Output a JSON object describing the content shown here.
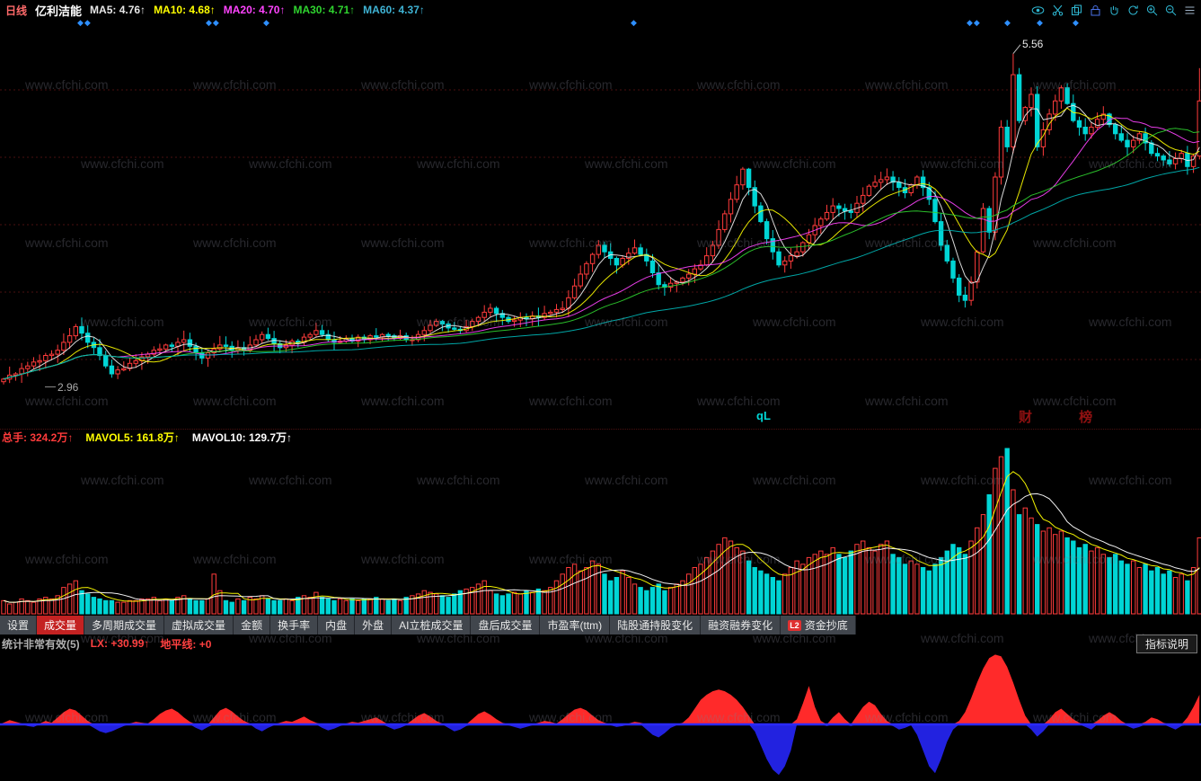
{
  "header": {
    "period": "日线",
    "stock_name": "亿利洁能",
    "ma_legend": [
      {
        "label": "MA5: 4.76↑",
        "color": "#e8e8e8"
      },
      {
        "label": "MA10: 4.68↑",
        "color": "#ffff00"
      },
      {
        "label": "MA20: 4.70↑",
        "color": "#ff44ff"
      },
      {
        "label": "MA30: 4.71↑",
        "color": "#2fd32f"
      },
      {
        "label": "MA60: 4.37↑",
        "color": "#3fb3d4"
      }
    ],
    "icons": [
      "eye",
      "scissors",
      "copy",
      "lock",
      "hand",
      "refresh",
      "zoom-in",
      "zoom-out",
      "menu"
    ]
  },
  "main_chart": {
    "peak_label": "5.56",
    "low_label": "2.96",
    "overlay_left": "qL",
    "overlay_right": "财 榜",
    "markers": [
      {
        "x": 86,
        "count": 2
      },
      {
        "x": 229,
        "count": 2
      },
      {
        "x": 293,
        "count": 1
      },
      {
        "x": 702,
        "count": 1
      },
      {
        "x": 1076,
        "count": 2
      },
      {
        "x": 1118,
        "count": 1
      },
      {
        "x": 1154,
        "count": 1
      },
      {
        "x": 1194,
        "count": 1
      }
    ]
  },
  "volume_header": {
    "total": {
      "label": "总手: 324.2万↑",
      "color": "#ff3b3b"
    },
    "mavol5": {
      "label": "MAVOL5: 161.8万↑",
      "color": "#ffff00"
    },
    "mavol10": {
      "label": "MAVOL10: 129.7万↑",
      "color": "#ffffff"
    }
  },
  "tabs": [
    {
      "key": "settings",
      "label": "设置"
    },
    {
      "key": "volume",
      "label": "成交量",
      "active": true
    },
    {
      "key": "multi-period-volume",
      "label": "多周期成交量"
    },
    {
      "key": "virtual-volume",
      "label": "虚拟成交量"
    },
    {
      "key": "amount",
      "label": "金额"
    },
    {
      "key": "turnover-rate",
      "label": "换手率"
    },
    {
      "key": "inner-disc",
      "label": "内盘"
    },
    {
      "key": "outer-disc",
      "label": "外盘"
    },
    {
      "key": "ai-pillar-volume",
      "label": "AI立桩成交量"
    },
    {
      "key": "after-hours-volume",
      "label": "盘后成交量"
    },
    {
      "key": "pe-ttm",
      "label": "市盈率(ttm)"
    },
    {
      "key": "northbound-holdings",
      "label": "陆股通持股变化"
    },
    {
      "key": "margin-change",
      "label": "融资融券变化"
    },
    {
      "key": "fund-bottom-fishing",
      "label": "资金抄底",
      "badge": "L2"
    }
  ],
  "indicator_header": {
    "name": "统计非常有效(5)",
    "lx": {
      "label": "LX: +30.99↑",
      "color": "#ff4040"
    },
    "horizon": {
      "label": "地平线: +0",
      "color": "#ff4040"
    },
    "help_button": "指标说明"
  },
  "watermark": {
    "text": "www.cfchi.com",
    "color": "rgba(125,125,140,0.32)"
  },
  "chart_data": {
    "type": "candlestick",
    "title": "亿利洁能 日线",
    "price": {
      "ylim": [
        2.88,
        5.75
      ],
      "annotated_high": {
        "index": 168,
        "value": 5.56
      },
      "annotated_low_label": 2.96,
      "up_color": "#ff3b3b",
      "down_color": "#00d5d5",
      "ma_lines": [
        {
          "period": 5,
          "color": "#f0f0f0"
        },
        {
          "period": 10,
          "color": "#ffff00"
        },
        {
          "period": 20,
          "color": "#ff44ff"
        },
        {
          "period": 30,
          "color": "#2fd32f"
        },
        {
          "period": 60,
          "color": "#00b8b8"
        }
      ],
      "closes": [
        3.08,
        3.11,
        3.12,
        3.16,
        3.18,
        3.21,
        3.22,
        3.26,
        3.27,
        3.3,
        3.36,
        3.41,
        3.48,
        3.43,
        3.36,
        3.32,
        3.26,
        3.18,
        3.12,
        3.15,
        3.16,
        3.2,
        3.22,
        3.25,
        3.27,
        3.3,
        3.31,
        3.34,
        3.33,
        3.36,
        3.38,
        3.33,
        3.28,
        3.24,
        3.28,
        3.31,
        3.34,
        3.33,
        3.3,
        3.32,
        3.3,
        3.34,
        3.38,
        3.42,
        3.39,
        3.35,
        3.32,
        3.34,
        3.37,
        3.36,
        3.4,
        3.42,
        3.45,
        3.42,
        3.38,
        3.36,
        3.37,
        3.39,
        3.37,
        3.4,
        3.38,
        3.41,
        3.4,
        3.42,
        3.41,
        3.39,
        3.41,
        3.38,
        3.38,
        3.42,
        3.45,
        3.49,
        3.52,
        3.5,
        3.47,
        3.46,
        3.45,
        3.48,
        3.52,
        3.55,
        3.59,
        3.62,
        3.58,
        3.55,
        3.52,
        3.53,
        3.55,
        3.54,
        3.56,
        3.55,
        3.58,
        3.59,
        3.61,
        3.62,
        3.7,
        3.79,
        3.88,
        3.96,
        4.03,
        4.1,
        4.05,
        4.0,
        3.95,
        4.0,
        4.04,
        4.08,
        4.03,
        3.98,
        3.89,
        3.8,
        3.78,
        3.81,
        3.82,
        3.85,
        3.88,
        3.92,
        3.95,
        4.02,
        4.1,
        4.22,
        4.34,
        4.45,
        4.56,
        4.68,
        4.54,
        4.4,
        4.28,
        4.15,
        4.05,
        3.95,
        3.98,
        4.02,
        4.05,
        4.12,
        4.18,
        4.25,
        4.3,
        4.35,
        4.4,
        4.38,
        4.36,
        4.35,
        4.42,
        4.48,
        4.55,
        4.58,
        4.6,
        4.62,
        4.58,
        4.54,
        4.5,
        4.56,
        4.62,
        4.54,
        4.45,
        4.28,
        4.1,
        3.98,
        3.85,
        3.72,
        3.68,
        3.82,
        4.05,
        4.38,
        4.2,
        4.62,
        5.0,
        4.85,
        5.4,
        5.05,
        5.15,
        5.25,
        4.85,
        4.98,
        5.1,
        5.2,
        5.3,
        5.18,
        5.05,
        5.0,
        4.95,
        5.0,
        5.06,
        5.1,
        5.02,
        4.95,
        4.9,
        4.85,
        4.9,
        4.95,
        4.88,
        4.8,
        4.78,
        4.75,
        4.72,
        4.76,
        4.8,
        4.7,
        4.78,
        5.2
      ]
    },
    "volume": {
      "mavol_lines": [
        {
          "period": 5,
          "color": "#ffff00"
        },
        {
          "period": 10,
          "color": "#ffffff"
        }
      ],
      "values": [
        8,
        6,
        7,
        9,
        8,
        7,
        9,
        10,
        9,
        11,
        16,
        18,
        20,
        14,
        12,
        10,
        9,
        8,
        8,
        7,
        7,
        8,
        8,
        9,
        9,
        10,
        8,
        9,
        8,
        10,
        11,
        9,
        8,
        8,
        9,
        24,
        14,
        8,
        7,
        9,
        8,
        10,
        9,
        11,
        9,
        8,
        8,
        9,
        8,
        10,
        11,
        10,
        13,
        10,
        9,
        8,
        9,
        8,
        9,
        8,
        9,
        9,
        10,
        9,
        8,
        9,
        8,
        10,
        11,
        12,
        14,
        13,
        12,
        11,
        10,
        12,
        14,
        15,
        16,
        18,
        20,
        14,
        12,
        11,
        12,
        13,
        12,
        14,
        13,
        15,
        14,
        16,
        20,
        24,
        28,
        30,
        26,
        28,
        32,
        30,
        24,
        20,
        22,
        26,
        22,
        18,
        16,
        14,
        16,
        18,
        14,
        16,
        18,
        20,
        24,
        28,
        30,
        34,
        38,
        42,
        46,
        44,
        40,
        38,
        32,
        28,
        26,
        24,
        22,
        20,
        24,
        28,
        32,
        30,
        34,
        36,
        38,
        36,
        40,
        36,
        34,
        38,
        42,
        44,
        40,
        38,
        42,
        44,
        36,
        34,
        30,
        32,
        30,
        28,
        26,
        30,
        34,
        38,
        42,
        40,
        36,
        44,
        52,
        60,
        72,
        88,
        95,
        100,
        75,
        60,
        64,
        58,
        54,
        50,
        52,
        48,
        50,
        46,
        44,
        40,
        42,
        38,
        40,
        36,
        34,
        36,
        32,
        30,
        32,
        28,
        30,
        26,
        28,
        24,
        26,
        22,
        24,
        20,
        28,
        46
      ]
    },
    "oscillator": {
      "name": "统计非常有效(5)",
      "baseline": 0,
      "positive_color": "#ff2a2a",
      "negative_color": "#2222e0",
      "baseline_color": "#2a2aff",
      "values": [
        2,
        5,
        3,
        1,
        -2,
        -3,
        1,
        4,
        2,
        8,
        14,
        18,
        16,
        10,
        4,
        -4,
        -8,
        -10,
        -8,
        -5,
        -2,
        1,
        3,
        2,
        1,
        6,
        12,
        16,
        18,
        14,
        8,
        3,
        -4,
        -7,
        -3,
        8,
        16,
        19,
        15,
        9,
        4,
        1,
        -5,
        -8,
        -4,
        -1,
        2,
        4,
        3,
        6,
        9,
        5,
        2,
        -4,
        -7,
        -5,
        -2,
        1,
        3,
        2,
        4,
        6,
        8,
        4,
        -3,
        -6,
        -4,
        -1,
        5,
        10,
        13,
        9,
        4,
        1,
        -4,
        -8,
        -6,
        -2,
        6,
        12,
        15,
        11,
        6,
        2,
        -1,
        -3,
        -5,
        -3,
        -1,
        2,
        4,
        3,
        1,
        6,
        12,
        17,
        19,
        16,
        10,
        5,
        2,
        -1,
        -3,
        -2,
        1,
        3,
        2,
        -6,
        -12,
        -15,
        -10,
        -4,
        -1,
        2,
        8,
        18,
        28,
        34,
        38,
        40,
        38,
        34,
        28,
        20,
        10,
        -8,
        -24,
        -40,
        -52,
        -58,
        -48,
        -30,
        6,
        24,
        44,
        20,
        4,
        -2,
        8,
        14,
        6,
        -2,
        10,
        20,
        26,
        22,
        12,
        4,
        -2,
        -6,
        -4,
        -1,
        -12,
        -30,
        -48,
        -56,
        -40,
        -20,
        -6,
        4,
        14,
        30,
        48,
        64,
        76,
        80,
        78,
        66,
        48,
        28,
        10,
        -6,
        -14,
        -8,
        6,
        14,
        18,
        12,
        6,
        2,
        -3,
        -6,
        4,
        10,
        14,
        10,
        4,
        -2,
        -5,
        -3,
        3,
        8,
        6,
        2,
        -3,
        -6,
        -2,
        8,
        20,
        34
      ]
    }
  }
}
